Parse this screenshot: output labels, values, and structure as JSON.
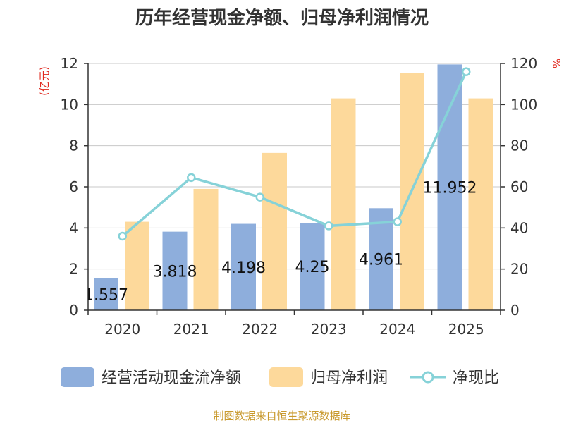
{
  "chart_data": {
    "type": "bar",
    "title": "历年经营现金净额、归母净利润情况",
    "categories": [
      "2020",
      "2021",
      "2022",
      "2023",
      "2024",
      "2025"
    ],
    "series": [
      {
        "name": "经营活动现金流净额",
        "type": "bar",
        "axis": "left",
        "values": [
          1.557,
          3.818,
          4.198,
          4.25,
          4.961,
          11.952
        ],
        "labels": [
          "1.557",
          "3.818",
          "4.198",
          "4.25",
          "4.961",
          "11.952"
        ],
        "color": "#8eaedc"
      },
      {
        "name": "归母净利润",
        "type": "bar",
        "axis": "left",
        "values": [
          4.3,
          5.9,
          7.65,
          10.3,
          11.55,
          10.3
        ],
        "color": "#fdd99b"
      },
      {
        "name": "净现比",
        "type": "line",
        "axis": "right",
        "values": [
          36,
          64.5,
          55,
          41,
          43,
          116
        ],
        "color": "#86d2d8"
      }
    ],
    "left_axis": {
      "unit": "(亿元)",
      "ylim": [
        0,
        12
      ],
      "ticks": [
        "0",
        "2",
        "4",
        "6",
        "8",
        "10",
        "12"
      ]
    },
    "right_axis": {
      "unit": "%",
      "ylim": [
        0,
        120
      ],
      "ticks": [
        "0",
        "20",
        "40",
        "60",
        "80",
        "100",
        "120"
      ]
    },
    "grid": true,
    "legend_position": "bottom"
  },
  "footer": {
    "source": "制图数据来自恒生聚源数据库"
  }
}
